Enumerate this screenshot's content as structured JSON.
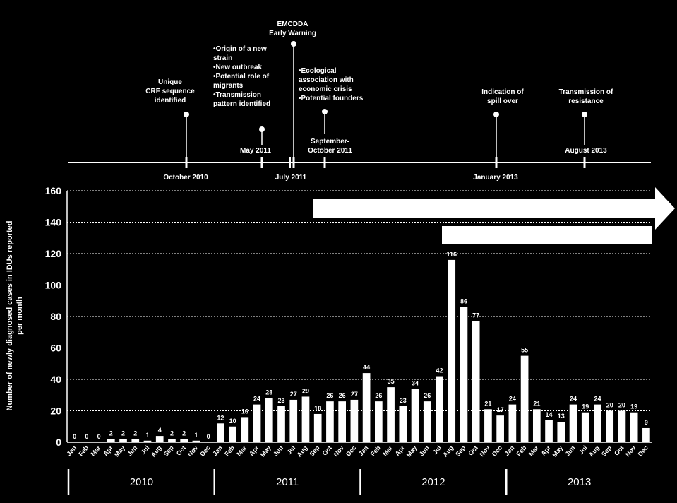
{
  "timeline": {
    "events": [
      {
        "id": "oct2010",
        "label_lines": [
          "Unique",
          "CRF sequence",
          "identified"
        ],
        "date": "October 2010"
      },
      {
        "id": "may2011",
        "label_lines": [
          "•Origin of a new",
          "strain",
          "•New outbreak",
          "•Potential role of",
          "migrants",
          "•Transmission",
          "pattern identified"
        ],
        "date": "May 2011"
      },
      {
        "id": "jul2011",
        "label_lines": [
          "EMCDDA",
          "Early Warning"
        ],
        "date": "July 2011"
      },
      {
        "id": "sepoct2011",
        "label_lines": [
          "•Ecological",
          "association with",
          "economic crisis",
          "•Potential founders"
        ],
        "date_lines": [
          "September-",
          "October 2011"
        ]
      },
      {
        "id": "jan2013",
        "label_lines": [
          "Indication of",
          "spill over"
        ],
        "date": "January 2013"
      },
      {
        "id": "aug2013",
        "label_lines": [
          "Transmission of",
          "resistance"
        ],
        "date": "August 2013"
      }
    ]
  },
  "chart_data": {
    "type": "bar",
    "ylabel": "Number of newly diagnosed cases in IDUs reported per month",
    "ylim": [
      0,
      160
    ],
    "yticks": [
      0,
      20,
      40,
      60,
      80,
      100,
      120,
      140,
      160
    ],
    "grid": true,
    "months": [
      "Jan",
      "Feb",
      "Mar",
      "Apr",
      "May",
      "Jun",
      "Jul",
      "Aug",
      "Sep",
      "Oct",
      "Nov",
      "Dec"
    ],
    "years": [
      "2010",
      "2011",
      "2012",
      "2013"
    ],
    "values": [
      0,
      0,
      0,
      2,
      2,
      2,
      1,
      4,
      2,
      2,
      1,
      0,
      12,
      10,
      16,
      24,
      28,
      23,
      27,
      29,
      18,
      26,
      26,
      27,
      44,
      26,
      35,
      23,
      34,
      26,
      42,
      116,
      86,
      77,
      21,
      17,
      24,
      55,
      21,
      14,
      13,
      24,
      19,
      24,
      20,
      20,
      19,
      9
    ],
    "value_labels": [
      "0",
      "0",
      "0",
      "2",
      "2",
      "2",
      "1",
      "4",
      "2",
      "2",
      "1",
      "0",
      "12",
      "10",
      "16",
      "24",
      "28",
      "23",
      "27",
      "29",
      "18",
      "26",
      "26",
      "27",
      "44",
      "26",
      "35",
      "23",
      "34",
      "26",
      "42",
      "116",
      "86",
      "77",
      "21",
      "17",
      "24",
      "55",
      "21",
      "14",
      "13",
      "24",
      "19",
      "24",
      "20",
      "20",
      "19",
      "9"
    ],
    "colors": {
      "background": "#000000",
      "bar": "#ffffff",
      "grid": "#ffffff"
    }
  }
}
